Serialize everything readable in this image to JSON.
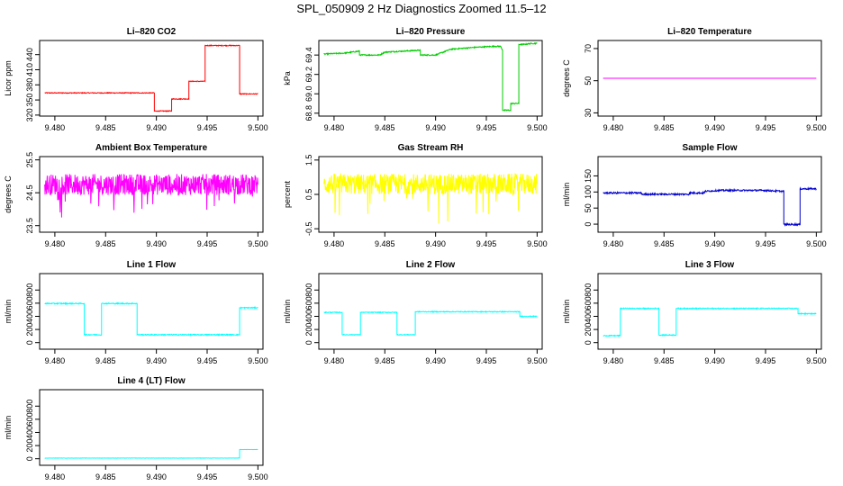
{
  "figure_title": "SPL_050909  2 Hz Diagnostics Zoomed 11.5–12",
  "chart_data": [
    {
      "type": "line",
      "title": "Li–820 CO2",
      "ylabel": "Licor ppm",
      "xlim": [
        9.4785,
        9.5005
      ],
      "ylim": [
        318,
        468
      ],
      "xticks": [
        9.48,
        9.485,
        9.49,
        9.495,
        9.5
      ],
      "xtick_labels": [
        "9.480",
        "9.485",
        "9.490",
        "9.495",
        "9.500"
      ],
      "yticks": [
        320,
        350,
        380,
        410,
        440
      ],
      "ytick_labels": [
        "320",
        "350",
        "380",
        "410",
        "440"
      ],
      "color": "#ff0000",
      "noise": 0.8,
      "series": [
        {
          "x": [
            9.479,
            9.4898,
            9.4898,
            9.4915,
            9.4915,
            9.4932,
            9.4932,
            9.4948,
            9.4948,
            9.4982,
            9.4982,
            9.5
          ],
          "y": [
            364,
            364,
            328,
            328,
            352,
            352,
            387,
            387,
            458,
            458,
            362,
            362
          ]
        }
      ]
    },
    {
      "type": "line",
      "title": "Li–820 Pressure",
      "ylabel": "kPa",
      "xlim": [
        9.4785,
        9.5005
      ],
      "ylim": [
        68.77,
        69.55
      ],
      "xticks": [
        9.48,
        9.485,
        9.49,
        9.495,
        9.5
      ],
      "xtick_labels": [
        "9.480",
        "9.485",
        "9.490",
        "9.495",
        "9.500"
      ],
      "yticks": [
        68.8,
        69.0,
        69.2,
        69.4
      ],
      "ytick_labels": [
        "68.8",
        "69.0",
        "69.2",
        "69.4"
      ],
      "color": "#00cc00",
      "noise": 0.006,
      "series": [
        {
          "x": [
            9.479,
            9.481,
            9.4825,
            9.4825,
            9.4845,
            9.485,
            9.4885,
            9.4885,
            9.49,
            9.4915,
            9.4915,
            9.494,
            9.4958,
            9.4964,
            9.4966,
            9.4966,
            9.4974,
            9.4974,
            9.4982,
            9.4982,
            9.4987,
            9.4995,
            9.5
          ],
          "y": [
            69.41,
            69.42,
            69.44,
            69.4,
            69.4,
            69.43,
            69.45,
            69.4,
            69.4,
            69.46,
            69.46,
            69.48,
            69.49,
            69.49,
            69.45,
            68.83,
            68.83,
            68.9,
            68.9,
            69.51,
            69.51,
            69.52,
            69.52
          ]
        }
      ]
    },
    {
      "type": "line",
      "title": "Li–820 Temperature",
      "ylabel": "degrees C",
      "xlim": [
        9.4785,
        9.5005
      ],
      "ylim": [
        28,
        75
      ],
      "xticks": [
        9.48,
        9.485,
        9.49,
        9.495,
        9.5
      ],
      "xtick_labels": [
        "9.480",
        "9.485",
        "9.490",
        "9.495",
        "9.500"
      ],
      "yticks": [
        30,
        50,
        70
      ],
      "ytick_labels": [
        "30",
        "50",
        "70"
      ],
      "color": "#ff00ff",
      "noise": 0,
      "series": [
        {
          "x": [
            9.479,
            9.5
          ],
          "y": [
            51.5,
            51.5
          ]
        }
      ]
    },
    {
      "type": "line",
      "title": "Ambient Box Temperature",
      "ylabel": "degrees C",
      "xlim": [
        9.4785,
        9.5005
      ],
      "ylim": [
        23.3,
        25.6
      ],
      "xticks": [
        9.48,
        9.485,
        9.49,
        9.495,
        9.5
      ],
      "xtick_labels": [
        "9.480",
        "9.485",
        "9.490",
        "9.495",
        "9.500"
      ],
      "yticks": [
        23.5,
        24.5,
        25.5
      ],
      "ytick_labels": [
        "23.5",
        "24.5",
        "25.5"
      ],
      "color": "#ff00ff",
      "noise": 0.32,
      "spikes": -0.6,
      "series": [
        {
          "x": [
            9.479,
            9.5
          ],
          "y": [
            24.75,
            24.75
          ]
        }
      ]
    },
    {
      "type": "line",
      "title": "Gas Stream RH",
      "ylabel": "percent",
      "xlim": [
        9.4785,
        9.5005
      ],
      "ylim": [
        -0.6,
        1.6
      ],
      "xticks": [
        9.48,
        9.485,
        9.49,
        9.495,
        9.5
      ],
      "xtick_labels": [
        "9.480",
        "9.485",
        "9.490",
        "9.495",
        "9.500"
      ],
      "yticks": [
        -0.5,
        0.5,
        1.5
      ],
      "ytick_labels": [
        "-0.5",
        "0.5",
        "1.5"
      ],
      "color": "#ffff00",
      "noise": 0.3,
      "spikes": -0.7,
      "series": [
        {
          "x": [
            9.479,
            9.5
          ],
          "y": [
            0.8,
            0.8
          ]
        }
      ]
    },
    {
      "type": "line",
      "title": "Sample Flow",
      "ylabel": "ml/min",
      "xlim": [
        9.4785,
        9.5005
      ],
      "ylim": [
        -25,
        210
      ],
      "xticks": [
        9.48,
        9.485,
        9.49,
        9.495,
        9.5
      ],
      "xtick_labels": [
        "9.480",
        "9.485",
        "9.490",
        "9.495",
        "9.500"
      ],
      "yticks": [
        0,
        50,
        100,
        150
      ],
      "ytick_labels": [
        "0",
        "50",
        "100",
        "150"
      ],
      "color": "#0000cc",
      "noise": 2.5,
      "series": [
        {
          "x": [
            9.479,
            9.4828,
            9.4828,
            9.4875,
            9.4875,
            9.489,
            9.489,
            9.4905,
            9.4948,
            9.4968,
            9.4968,
            9.4984,
            9.4984,
            9.5
          ],
          "y": [
            97,
            97,
            93,
            93,
            97,
            97,
            102,
            105,
            105,
            102,
            -1,
            -1,
            110,
            110
          ]
        }
      ]
    },
    {
      "type": "line",
      "title": "Line 1 Flow",
      "ylabel": "ml/min",
      "xlim": [
        9.4785,
        9.5005
      ],
      "ylim": [
        -100,
        1050
      ],
      "xticks": [
        9.48,
        9.485,
        9.49,
        9.495,
        9.5
      ],
      "xtick_labels": [
        "9.480",
        "9.485",
        "9.490",
        "9.495",
        "9.500"
      ],
      "yticks": [
        0,
        200,
        400,
        600,
        800
      ],
      "ytick_labels": [
        "0",
        "200",
        "400",
        "600",
        "800"
      ],
      "color": "#00ffff",
      "noise": 8,
      "series": [
        {
          "x": [
            9.479,
            9.4829,
            9.4829,
            9.4846,
            9.4846,
            9.4881,
            9.4881,
            9.4982,
            9.4982,
            9.5
          ],
          "y": [
            595,
            595,
            120,
            120,
            595,
            595,
            120,
            120,
            530,
            530
          ]
        }
      ]
    },
    {
      "type": "line",
      "title": "Line 2 Flow",
      "ylabel": "ml/min",
      "xlim": [
        9.4785,
        9.5005
      ],
      "ylim": [
        -100,
        1050
      ],
      "xticks": [
        9.48,
        9.485,
        9.49,
        9.495,
        9.5
      ],
      "xtick_labels": [
        "9.480",
        "9.485",
        "9.490",
        "9.495",
        "9.500"
      ],
      "yticks": [
        0,
        200,
        400,
        600,
        800
      ],
      "ytick_labels": [
        "0",
        "200",
        "400",
        "600",
        "800"
      ],
      "color": "#00ffff",
      "noise": 6,
      "series": [
        {
          "x": [
            9.479,
            9.4808,
            9.4808,
            9.4826,
            9.4826,
            9.4862,
            9.4862,
            9.488,
            9.488,
            9.4983,
            9.4983,
            9.5
          ],
          "y": [
            460,
            460,
            120,
            120,
            460,
            460,
            120,
            120,
            470,
            470,
            400,
            400
          ]
        }
      ]
    },
    {
      "type": "line",
      "title": "Line 3 Flow",
      "ylabel": "ml/min",
      "xlim": [
        9.4785,
        9.5005
      ],
      "ylim": [
        -100,
        1050
      ],
      "xticks": [
        9.48,
        9.485,
        9.49,
        9.495,
        9.5
      ],
      "xtick_labels": [
        "9.480",
        "9.485",
        "9.490",
        "9.495",
        "9.500"
      ],
      "yticks": [
        0,
        200,
        400,
        600,
        800
      ],
      "ytick_labels": [
        "0",
        "200",
        "400",
        "600",
        "800"
      ],
      "color": "#00ffff",
      "noise": 7,
      "series": [
        {
          "x": [
            9.479,
            9.4807,
            9.4807,
            9.4845,
            9.4845,
            9.4862,
            9.4862,
            9.4982,
            9.4982,
            9.5
          ],
          "y": [
            105,
            105,
            520,
            520,
            115,
            115,
            520,
            520,
            440,
            440
          ]
        }
      ]
    },
    {
      "type": "line",
      "title": "Line 4 (LT) Flow",
      "ylabel": "ml/min",
      "xlim": [
        9.4785,
        9.5005
      ],
      "ylim": [
        -100,
        1050
      ],
      "xticks": [
        9.48,
        9.485,
        9.49,
        9.495,
        9.5
      ],
      "xtick_labels": [
        "9.480",
        "9.485",
        "9.490",
        "9.495",
        "9.500"
      ],
      "yticks": [
        0,
        200,
        400,
        600,
        800
      ],
      "ytick_labels": [
        "0",
        "200",
        "400",
        "600",
        "800"
      ],
      "color": "#00ffff",
      "noise": 2,
      "series": [
        {
          "x": [
            9.479,
            9.4982,
            9.4982,
            9.5
          ],
          "y": [
            10,
            10,
            140,
            140
          ]
        }
      ]
    }
  ]
}
